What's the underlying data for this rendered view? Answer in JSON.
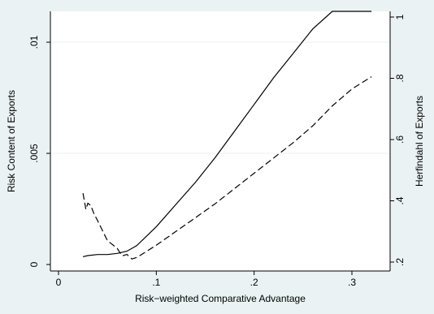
{
  "chart_data": {
    "type": "line",
    "xlabel": "Risk−weighted Comparative Advantage",
    "ylabel_left": "Risk Content of Exports",
    "ylabel_right": "Herfindahl of Exports",
    "xlim": [
      0,
      0.33
    ],
    "ylim_left": [
      0,
      0.0115
    ],
    "ylim_right": [
      0.2,
      1.0
    ],
    "x_ticks": [
      {
        "value": 0,
        "label": "0"
      },
      {
        "value": 0.1,
        "label": ".1"
      },
      {
        "value": 0.2,
        "label": ".2"
      },
      {
        "value": 0.3,
        "label": ".3"
      }
    ],
    "y_left_ticks": [
      {
        "value": 0,
        "label": "0"
      },
      {
        "value": 0.005,
        "label": ".005"
      },
      {
        "value": 0.01,
        "label": ".01"
      }
    ],
    "y_right_ticks": [
      {
        "value": 0.2,
        "label": ".2"
      },
      {
        "value": 0.4,
        "label": ".4"
      },
      {
        "value": 0.6,
        "label": ".6"
      },
      {
        "value": 0.8,
        "label": ".8"
      },
      {
        "value": 1.0,
        "label": "1"
      }
    ],
    "grid": "horizontal",
    "series": [
      {
        "style": "solid",
        "axis": "left",
        "x": [
          0.025,
          0.03,
          0.04,
          0.05,
          0.06,
          0.07,
          0.08,
          0.1,
          0.12,
          0.14,
          0.16,
          0.18,
          0.2,
          0.22,
          0.24,
          0.26,
          0.28,
          0.3,
          0.31,
          0.32
        ],
        "y": [
          0.00035,
          0.0004,
          0.00045,
          0.00045,
          0.0005,
          0.0006,
          0.00085,
          0.0017,
          0.0027,
          0.0037,
          0.0048,
          0.006,
          0.0072,
          0.0084,
          0.0095,
          0.0106,
          0.0117,
          0.0128,
          0.0132,
          0.0135
        ]
      },
      {
        "style": "dashed",
        "axis": "right",
        "x": [
          0.025,
          0.028,
          0.03,
          0.033,
          0.036,
          0.04,
          0.05,
          0.06,
          0.065,
          0.07,
          0.075,
          0.08,
          0.085,
          0.1,
          0.12,
          0.14,
          0.16,
          0.18,
          0.2,
          0.22,
          0.24,
          0.26,
          0.28,
          0.3,
          0.32
        ],
        "y": [
          0.425,
          0.372,
          0.392,
          0.385,
          0.36,
          0.335,
          0.27,
          0.245,
          0.22,
          0.225,
          0.21,
          0.215,
          0.225,
          0.255,
          0.3,
          0.345,
          0.39,
          0.44,
          0.49,
          0.54,
          0.59,
          0.645,
          0.71,
          0.765,
          0.805
        ]
      }
    ]
  }
}
